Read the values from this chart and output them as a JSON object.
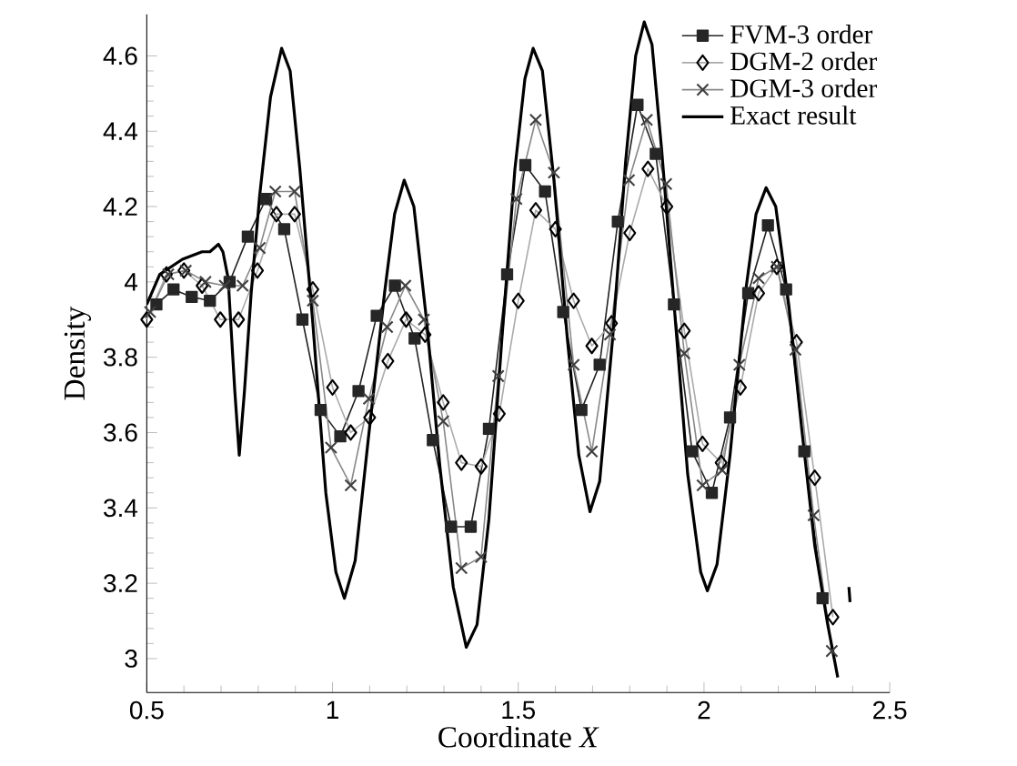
{
  "chart_data": {
    "type": "line",
    "xlabel": "Coordinate *X*",
    "ylabel": "Density",
    "xlim": [
      0.5,
      2.5
    ],
    "ylim": [
      2.91,
      4.71
    ],
    "xticks": [
      0.5,
      1,
      1.5,
      2,
      2.5
    ],
    "yticks": [
      3,
      3.2,
      3.4,
      3.6,
      3.8,
      4,
      4.2,
      4.4,
      4.6
    ],
    "grid": false,
    "legend": "top right",
    "series": [
      {
        "name": "FVM-3 order",
        "color": "#222222",
        "marker": "square",
        "x": [
          0.526,
          0.572,
          0.621,
          0.67,
          0.723,
          0.772,
          0.821,
          0.87,
          0.919,
          0.968,
          1.021,
          1.07,
          1.119,
          1.168,
          1.221,
          1.27,
          1.319,
          1.372,
          1.421,
          1.47,
          1.519,
          1.572,
          1.621,
          1.67,
          1.719,
          1.768,
          1.821,
          1.87,
          1.919,
          1.968,
          2.021,
          2.07,
          2.119,
          2.172,
          2.221,
          2.27,
          2.319
        ],
        "values": [
          3.94,
          3.98,
          3.96,
          3.95,
          4.0,
          4.12,
          4.22,
          4.14,
          3.9,
          3.66,
          3.59,
          3.71,
          3.91,
          3.99,
          3.85,
          3.58,
          3.35,
          3.35,
          3.61,
          4.02,
          4.31,
          4.24,
          3.92,
          3.66,
          3.78,
          4.16,
          4.47,
          4.34,
          3.94,
          3.55,
          3.44,
          3.64,
          3.97,
          4.15,
          3.98,
          3.55,
          3.16
        ]
      },
      {
        "name": "DGM-2 order",
        "color": "#aaaaaa",
        "marker": "diamond",
        "x": [
          0.5,
          0.553,
          0.6,
          0.649,
          0.698,
          0.747,
          0.798,
          0.849,
          0.898,
          0.947,
          1.0,
          1.049,
          1.1,
          1.149,
          1.198,
          1.249,
          1.298,
          1.347,
          1.4,
          1.449,
          1.5,
          1.547,
          1.6,
          1.649,
          1.698,
          1.751,
          1.8,
          1.849,
          1.9,
          1.947,
          1.996,
          2.046,
          2.098,
          2.147,
          2.196,
          2.249,
          2.298,
          2.347
        ],
        "values": [
          3.9,
          4.02,
          4.03,
          3.99,
          3.9,
          3.9,
          4.03,
          4.18,
          4.18,
          3.98,
          3.72,
          3.6,
          3.64,
          3.79,
          3.9,
          3.86,
          3.68,
          3.52,
          3.51,
          3.65,
          3.95,
          4.19,
          4.14,
          3.95,
          3.83,
          3.89,
          4.13,
          4.3,
          4.2,
          3.87,
          3.57,
          3.52,
          3.72,
          3.97,
          4.04,
          3.84,
          3.48,
          3.11
        ]
      },
      {
        "name": "DGM-3 order",
        "color": "#888888",
        "marker": "cross",
        "x": [
          0.509,
          0.558,
          0.605,
          0.658,
          0.71,
          0.758,
          0.804,
          0.846,
          0.898,
          0.947,
          0.996,
          1.049,
          1.098,
          1.147,
          1.196,
          1.246,
          1.298,
          1.347,
          1.4,
          1.446,
          1.495,
          1.547,
          1.596,
          1.649,
          1.698,
          1.747,
          1.798,
          1.846,
          1.898,
          1.947,
          1.996,
          2.049,
          2.095,
          2.147,
          2.196,
          2.246,
          2.295,
          2.344
        ],
        "values": [
          3.92,
          4.02,
          4.03,
          4.0,
          3.99,
          3.99,
          4.09,
          4.24,
          4.24,
          3.95,
          3.56,
          3.46,
          3.69,
          3.88,
          3.99,
          3.9,
          3.63,
          3.24,
          3.27,
          3.75,
          4.22,
          4.43,
          4.29,
          3.78,
          3.55,
          3.86,
          4.27,
          4.43,
          4.26,
          3.81,
          3.46,
          3.5,
          3.78,
          4.01,
          4.04,
          3.82,
          3.38,
          3.02
        ]
      },
      {
        "name": "Exact result",
        "color": "#000000",
        "marker": "none",
        "x": [
          0.5,
          0.535,
          0.596,
          0.649,
          0.67,
          0.693,
          0.705,
          0.719,
          0.737,
          0.749,
          0.763,
          0.781,
          0.804,
          0.833,
          0.863,
          0.886,
          0.912,
          0.947,
          0.982,
          1.009,
          1.032,
          1.061,
          1.096,
          1.14,
          1.167,
          1.193,
          1.219,
          1.254,
          1.289,
          1.325,
          1.36,
          1.389,
          1.421,
          1.456,
          1.491,
          1.518,
          1.54,
          1.565,
          1.596,
          1.632,
          1.663,
          1.693,
          1.719,
          1.754,
          1.789,
          1.816,
          1.839,
          1.86,
          1.886,
          1.921,
          1.956,
          1.991,
          2.009,
          2.035,
          2.07,
          2.114,
          2.14,
          2.167,
          2.193,
          2.228,
          2.263,
          2.298,
          2.333,
          2.36,
          2.368,
          2.388,
          2.39,
          2.393
        ],
        "values": [
          3.94,
          4.02,
          4.06,
          4.08,
          4.08,
          4.1,
          4.08,
          4.01,
          3.71,
          3.54,
          3.71,
          3.97,
          4.23,
          4.49,
          4.62,
          4.56,
          4.3,
          3.89,
          3.44,
          3.23,
          3.16,
          3.26,
          3.58,
          3.97,
          4.18,
          4.27,
          4.2,
          3.89,
          3.51,
          3.19,
          3.03,
          3.09,
          3.37,
          3.85,
          4.3,
          4.54,
          4.62,
          4.56,
          4.27,
          3.85,
          3.54,
          3.39,
          3.47,
          3.85,
          4.32,
          4.6,
          4.69,
          4.63,
          4.35,
          3.92,
          3.49,
          3.23,
          3.18,
          3.25,
          3.54,
          3.99,
          4.18,
          4.25,
          4.2,
          3.94,
          3.61,
          3.3,
          3.09,
          2.95,
          null,
          null,
          3.19,
          3.15
        ]
      }
    ]
  }
}
